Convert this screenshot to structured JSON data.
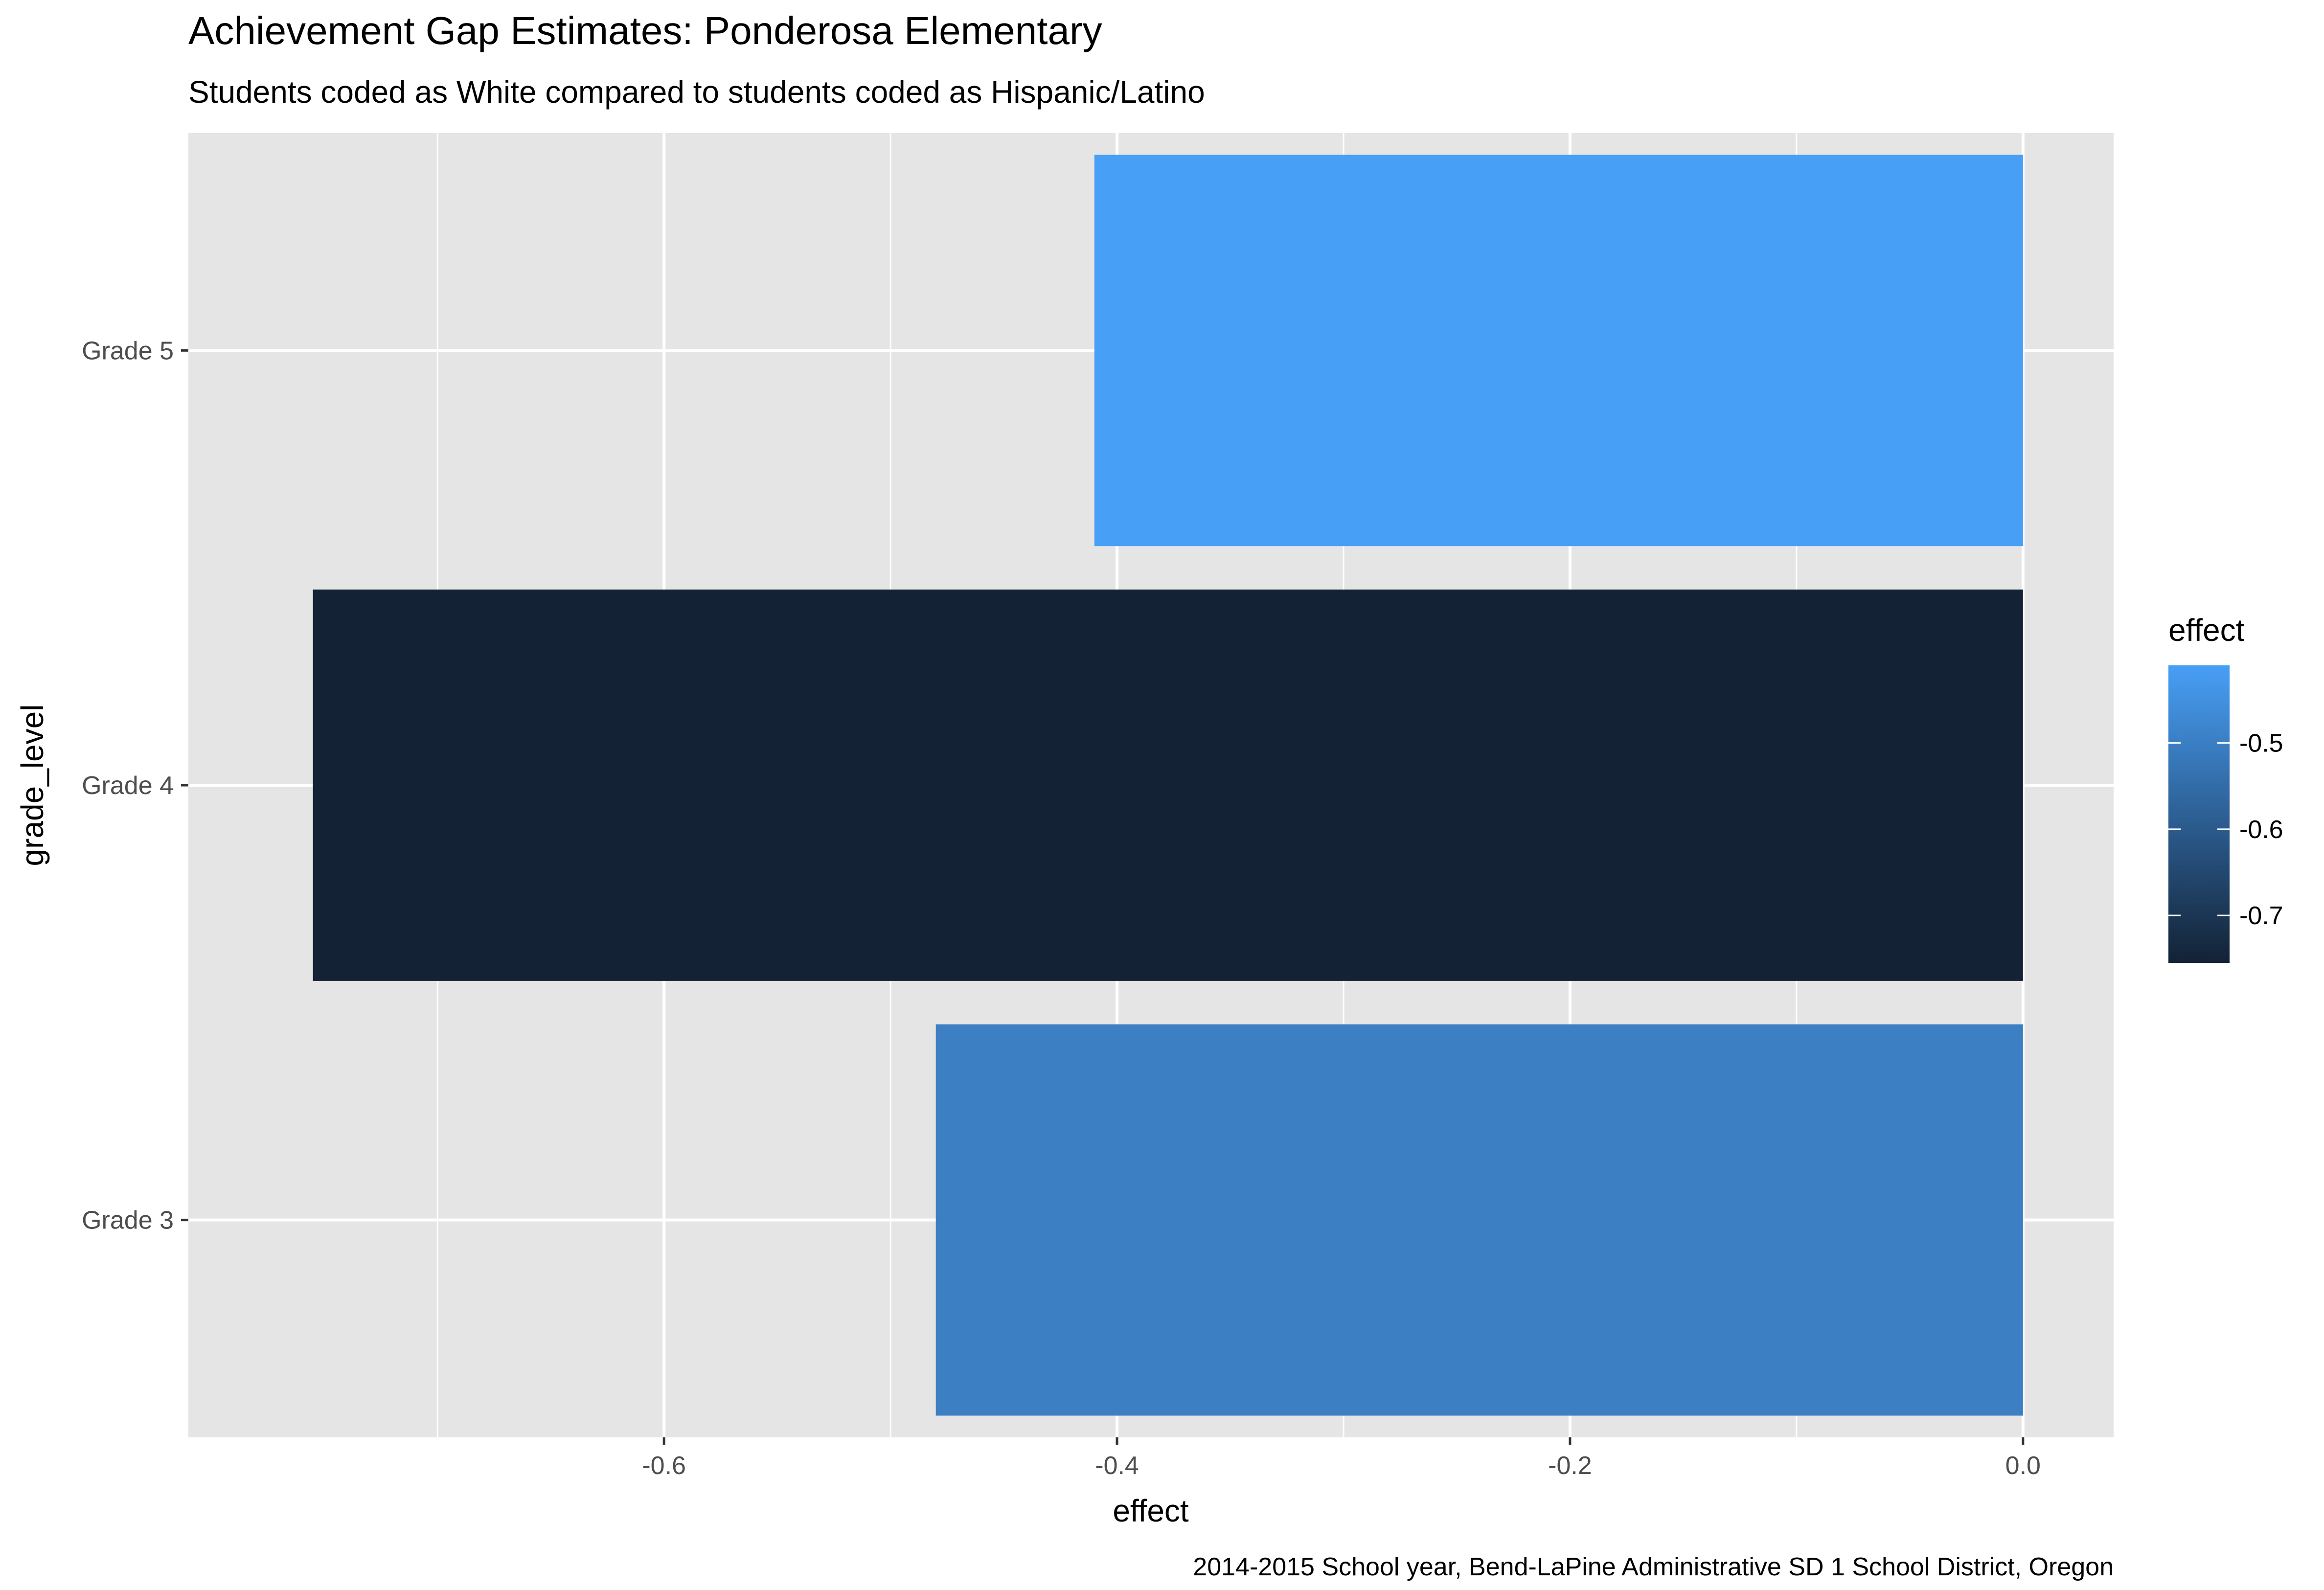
{
  "chart_data": {
    "type": "bar",
    "orientation": "horizontal",
    "title": "Achievement Gap Estimates: Ponderosa Elementary",
    "subtitle": "Students coded as White compared to students coded as Hispanic/Latino",
    "xlabel": "effect",
    "ylabel": "grade_level",
    "caption": "2014-2015 School year, Bend-LaPine Administrative SD 1 School District, Oregon",
    "categories": [
      "Grade 3",
      "Grade 4",
      "Grade 5"
    ],
    "values": [
      -0.48,
      -0.755,
      -0.41
    ],
    "bar_colors": [
      "#3c7fc3",
      "#132235",
      "#489ff6"
    ],
    "xlim": [
      -0.81,
      0.04
    ],
    "xticks": [
      -0.6,
      -0.4,
      -0.2,
      0.0
    ],
    "xtick_labels": [
      "-0.6",
      "-0.4",
      "-0.2",
      "0.0"
    ],
    "grid": true,
    "background": "#e5e5e5",
    "legend": {
      "title": "effect",
      "placement": "right",
      "type": "colorbar",
      "ticks": [
        -0.5,
        -0.6,
        -0.7
      ],
      "tick_labels": [
        "-0.5",
        "-0.6",
        "-0.7"
      ],
      "range": [
        -0.755,
        -0.41
      ],
      "color_low": "#132235",
      "color_high": "#489ff6"
    }
  }
}
